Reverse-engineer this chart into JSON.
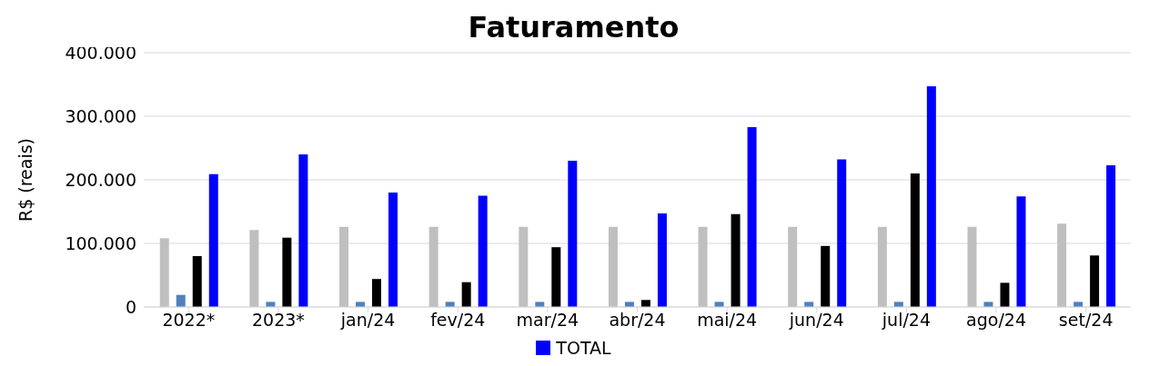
{
  "chart_data": {
    "type": "bar",
    "title": "Faturamento",
    "ylabel": "R$ (reais)",
    "categories": [
      "2022*",
      "2023*",
      "jan/24",
      "fev/24",
      "mar/24",
      "abr/24",
      "mai/24",
      "jun/24",
      "jul/24",
      "ago/24",
      "set/24"
    ],
    "series": [
      {
        "color": "#bfbfbf",
        "values": [
          108000,
          121000,
          126000,
          126000,
          126000,
          126000,
          126000,
          126000,
          126000,
          126000,
          131000
        ]
      },
      {
        "color": "#4f81bd",
        "values": [
          19000,
          8000,
          8000,
          8000,
          8000,
          8000,
          8000,
          8000,
          8000,
          8000,
          8000
        ]
      },
      {
        "color": "#000000",
        "values": [
          80000,
          109000,
          44000,
          39000,
          94000,
          11000,
          146000,
          96000,
          210000,
          38000,
          81000
        ]
      },
      {
        "name": "TOTAL",
        "color": "#0000ff",
        "values": [
          209000,
          240000,
          180000,
          175000,
          230000,
          147000,
          283000,
          232000,
          347000,
          174000,
          223000
        ]
      }
    ],
    "ylim": [
      0,
      400000
    ],
    "yticks": [
      0,
      {
        "value": 100000,
        "label": "100.000"
      },
      {
        "value": 200000,
        "label": "200.000"
      },
      {
        "value": 300000,
        "label": "300.000"
      },
      {
        "value": 400000,
        "label": "400.000"
      }
    ],
    "grid": "y",
    "legend": "bottom"
  }
}
